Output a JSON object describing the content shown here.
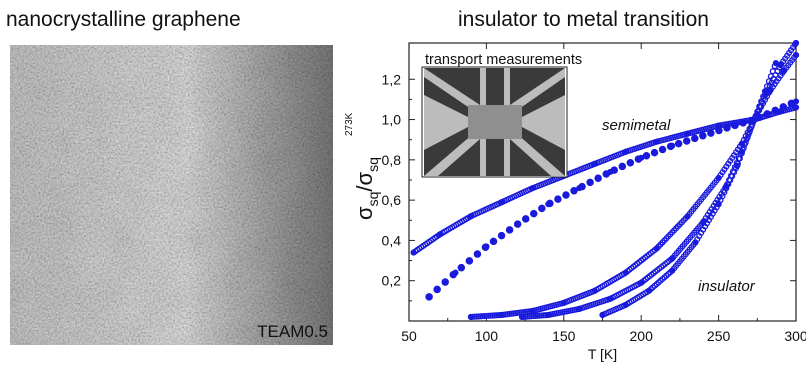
{
  "left_panel": {
    "title": "nanocrystalline graphene",
    "image_label": "TEAM0.5"
  },
  "chart_data": {
    "type": "scatter",
    "title": "insulator to metal transition",
    "xlabel": "T [K]",
    "ylabel_main": "σ",
    "ylabel_sub": "sq",
    "ylabel_den": "σ",
    "ylabel_den_sub": "sq",
    "ylabel_sup": "273K",
    "xlim": [
      50,
      300
    ],
    "ylim": [
      0,
      1.38
    ],
    "x_ticks": [
      50,
      100,
      150,
      200,
      250,
      300
    ],
    "y_ticks": [
      0.2,
      0.4,
      0.6,
      0.8,
      1.0,
      1.2
    ],
    "y_tick_labels": [
      "0,2",
      "0,4",
      "0,6",
      "0,8",
      "1,0",
      "1,2"
    ],
    "grid": false,
    "marker_color": "#1a1adc",
    "annotations": {
      "semimetal": "semimetal",
      "insulator": "insulator",
      "inset_title": "transport measurements"
    },
    "series": [
      {
        "style": "dense",
        "x": [
          53,
          70,
          90,
          110,
          130,
          150,
          170,
          190,
          210,
          230,
          250,
          273,
          290,
          300
        ],
        "y": [
          0.34,
          0.43,
          0.52,
          0.59,
          0.66,
          0.72,
          0.78,
          0.84,
          0.89,
          0.93,
          0.97,
          1.0,
          1.04,
          1.06
        ]
      },
      {
        "style": "sparse",
        "x": [
          63,
          80,
          100,
          120,
          140,
          160,
          180,
          200,
          220,
          240,
          260,
          273,
          300
        ],
        "y": [
          0.12,
          0.24,
          0.37,
          0.48,
          0.58,
          0.66,
          0.74,
          0.81,
          0.87,
          0.92,
          0.97,
          1.0,
          1.09
        ]
      },
      {
        "style": "dense",
        "x": [
          90,
          110,
          130,
          150,
          170,
          190,
          210,
          230,
          250,
          265,
          273,
          280,
          287
        ],
        "y": [
          0.02,
          0.03,
          0.05,
          0.09,
          0.15,
          0.24,
          0.36,
          0.52,
          0.71,
          0.88,
          1.0,
          1.14,
          1.28
        ]
      },
      {
        "style": "dense",
        "x": [
          123,
          140,
          160,
          180,
          200,
          220,
          240,
          255,
          265,
          273,
          280,
          290,
          300
        ],
        "y": [
          0.02,
          0.03,
          0.06,
          0.11,
          0.19,
          0.31,
          0.49,
          0.67,
          0.84,
          1.0,
          1.12,
          1.27,
          1.38
        ]
      },
      {
        "style": "dense",
        "x": [
          175,
          190,
          205,
          220,
          235,
          250,
          262,
          273,
          283,
          292,
          300
        ],
        "y": [
          0.03,
          0.08,
          0.15,
          0.25,
          0.39,
          0.58,
          0.77,
          1.0,
          1.14,
          1.24,
          1.32
        ]
      }
    ]
  }
}
